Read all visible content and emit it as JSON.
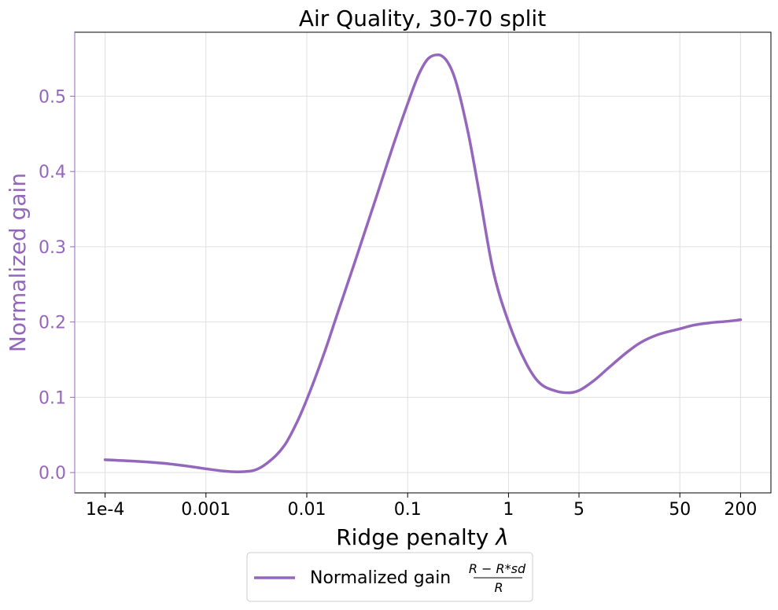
{
  "chart_data": {
    "type": "line",
    "title": "Air Quality, 30-70 split",
    "xlabel": "Ridge penalty",
    "xlabel_symbol": "λ",
    "ylabel": "Normalized gain",
    "x_scale": "log",
    "xlim": [
      5e-05,
      400
    ],
    "ylim": [
      -0.027,
      0.585
    ],
    "grid": true,
    "x_ticks": [
      {
        "value": 0.0001,
        "label": "1e-4"
      },
      {
        "value": 0.001,
        "label": "0.001"
      },
      {
        "value": 0.01,
        "label": "0.01"
      },
      {
        "value": 0.1,
        "label": "0.1"
      },
      {
        "value": 1,
        "label": "1"
      },
      {
        "value": 5,
        "label": "5"
      },
      {
        "value": 50,
        "label": "50"
      },
      {
        "value": 200,
        "label": "200"
      }
    ],
    "y_ticks": [
      {
        "value": 0.0,
        "label": "0.0"
      },
      {
        "value": 0.1,
        "label": "0.1"
      },
      {
        "value": 0.2,
        "label": "0.2"
      },
      {
        "value": 0.3,
        "label": "0.3"
      },
      {
        "value": 0.4,
        "label": "0.4"
      },
      {
        "value": 0.5,
        "label": "0.5"
      }
    ],
    "series": [
      {
        "name": "Normalized gain",
        "color": "#9467bd",
        "x": [
          0.0001,
          0.0002,
          0.0004,
          0.0007,
          0.001,
          0.0015,
          0.002,
          0.003,
          0.004,
          0.006,
          0.008,
          0.01,
          0.015,
          0.02,
          0.03,
          0.05,
          0.07,
          0.1,
          0.13,
          0.16,
          0.2,
          0.25,
          0.3,
          0.4,
          0.5,
          0.7,
          1,
          1.5,
          2,
          3,
          4,
          5,
          7,
          10,
          15,
          20,
          30,
          50,
          70,
          100,
          150,
          200
        ],
        "y": [
          0.017,
          0.015,
          0.012,
          0.008,
          0.005,
          0.002,
          0.001,
          0.003,
          0.012,
          0.036,
          0.067,
          0.097,
          0.16,
          0.21,
          0.28,
          0.37,
          0.43,
          0.49,
          0.53,
          0.55,
          0.555,
          0.545,
          0.52,
          0.45,
          0.38,
          0.27,
          0.2,
          0.145,
          0.12,
          0.108,
          0.106,
          0.109,
          0.122,
          0.14,
          0.16,
          0.172,
          0.183,
          0.191,
          0.196,
          0.199,
          0.201,
          0.203
        ]
      }
    ],
    "legend": {
      "position": "below",
      "label": "Normalized gain",
      "formula_numerator": "R − R*sd",
      "formula_denominator": "R"
    },
    "colors": {
      "series": "#9467bd",
      "grid": "#e0e0e0",
      "axis": "#000000"
    }
  }
}
